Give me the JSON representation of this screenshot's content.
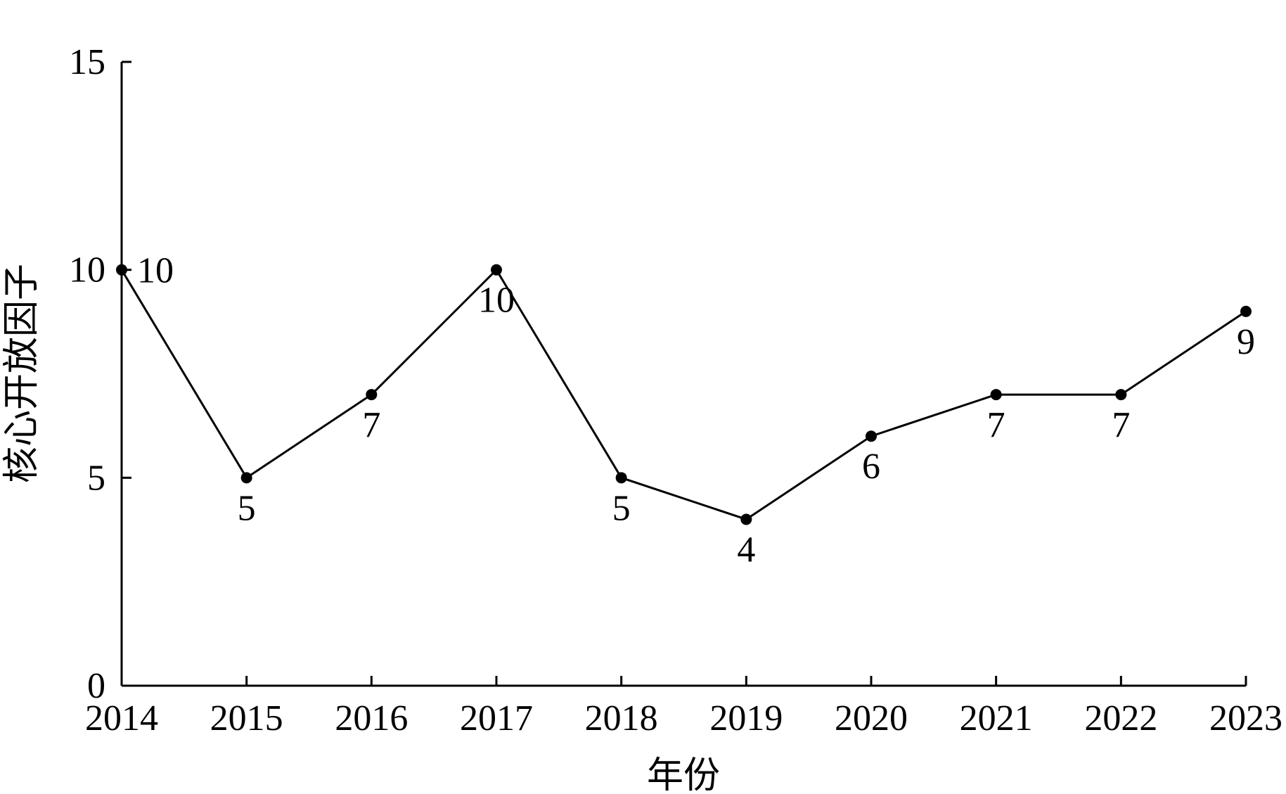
{
  "chart_data": {
    "type": "line",
    "title": "",
    "xlabel": "年份",
    "ylabel": "核心开放因子",
    "categories": [
      "2014",
      "2015",
      "2016",
      "2017",
      "2018",
      "2019",
      "2020",
      "2021",
      "2022",
      "2023"
    ],
    "series": [
      {
        "values": [
          10,
          5,
          7,
          10,
          5,
          4,
          6,
          7,
          7,
          9
        ]
      }
    ],
    "data_labels": [
      "10",
      "5",
      "7",
      "10",
      "5",
      "4",
      "6",
      "7",
      "7",
      "9"
    ],
    "yticks": [
      "0",
      "5",
      "10",
      "15"
    ],
    "ylim": [
      0,
      15
    ],
    "grid": false,
    "legend": "none",
    "colors": {
      "line": "#000000",
      "marker": "#000000"
    }
  }
}
